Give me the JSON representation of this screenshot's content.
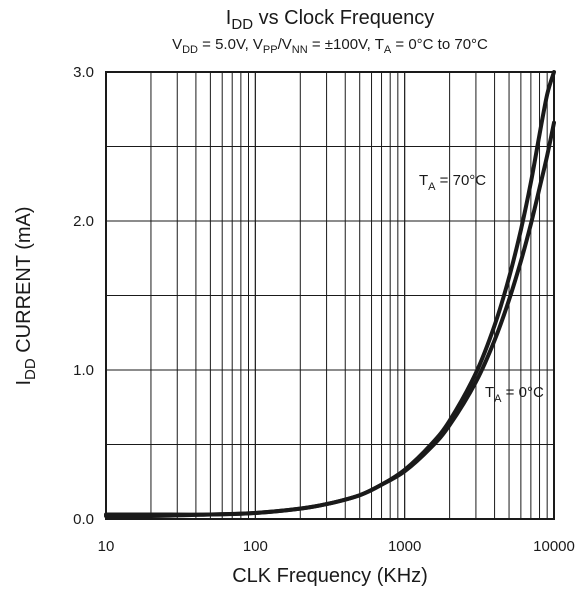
{
  "chart_data": {
    "type": "line",
    "title": {
      "main": "I",
      "sub": "DD",
      "rest": " vs Clock Frequency"
    },
    "subtitle": {
      "p1": "V",
      "s1": "DD",
      "p2": " = 5.0V, V",
      "s2": "PP",
      "p3": "/V",
      "s3": "NN",
      "p4": " =  ±100V, T",
      "s4": "A",
      "p5": " = 0°C to 70°C"
    },
    "xlabel": "CLK Frequency (KHz)",
    "ylabel": {
      "main": "I",
      "sub": "DD",
      "rest": " CURRENT (mA)"
    },
    "xscale": "log",
    "xlim": [
      10,
      10000
    ],
    "ylim": [
      0,
      3
    ],
    "x_ticks": [
      10,
      100,
      1000,
      10000
    ],
    "x_tick_labels": [
      "10",
      "100",
      "1000",
      "10000"
    ],
    "y_ticks": [
      0,
      1,
      2,
      3
    ],
    "y_tick_labels": [
      "0.0",
      "1.0",
      "2.0",
      "3.0"
    ],
    "grid": true,
    "line_color": "#1a1a1a",
    "series": [
      {
        "name": "T_A = 70°C",
        "label": {
          "main": "T",
          "sub": "A",
          "rest": " = 70°C"
        },
        "x": [
          10,
          20,
          50,
          100,
          200,
          300,
          500,
          700,
          1000,
          1500,
          2000,
          3000,
          4000,
          5000,
          6000,
          7000,
          8000,
          9000,
          10000
        ],
        "y": [
          0.02,
          0.02,
          0.03,
          0.04,
          0.07,
          0.1,
          0.16,
          0.23,
          0.33,
          0.5,
          0.66,
          0.98,
          1.3,
          1.62,
          1.94,
          2.26,
          2.58,
          2.85,
          3.0
        ]
      },
      {
        "name": "T_A = 0°C",
        "label": {
          "main": "T",
          "sub": "A",
          "rest": " = 0°C"
        },
        "x": [
          10,
          20,
          50,
          100,
          200,
          300,
          500,
          700,
          1000,
          1500,
          2000,
          3000,
          4000,
          5000,
          6000,
          7000,
          8000,
          9000,
          10000
        ],
        "y": [
          0.03,
          0.03,
          0.03,
          0.04,
          0.07,
          0.1,
          0.16,
          0.23,
          0.32,
          0.48,
          0.63,
          0.92,
          1.2,
          1.47,
          1.73,
          1.98,
          2.22,
          2.44,
          2.66
        ]
      }
    ]
  }
}
